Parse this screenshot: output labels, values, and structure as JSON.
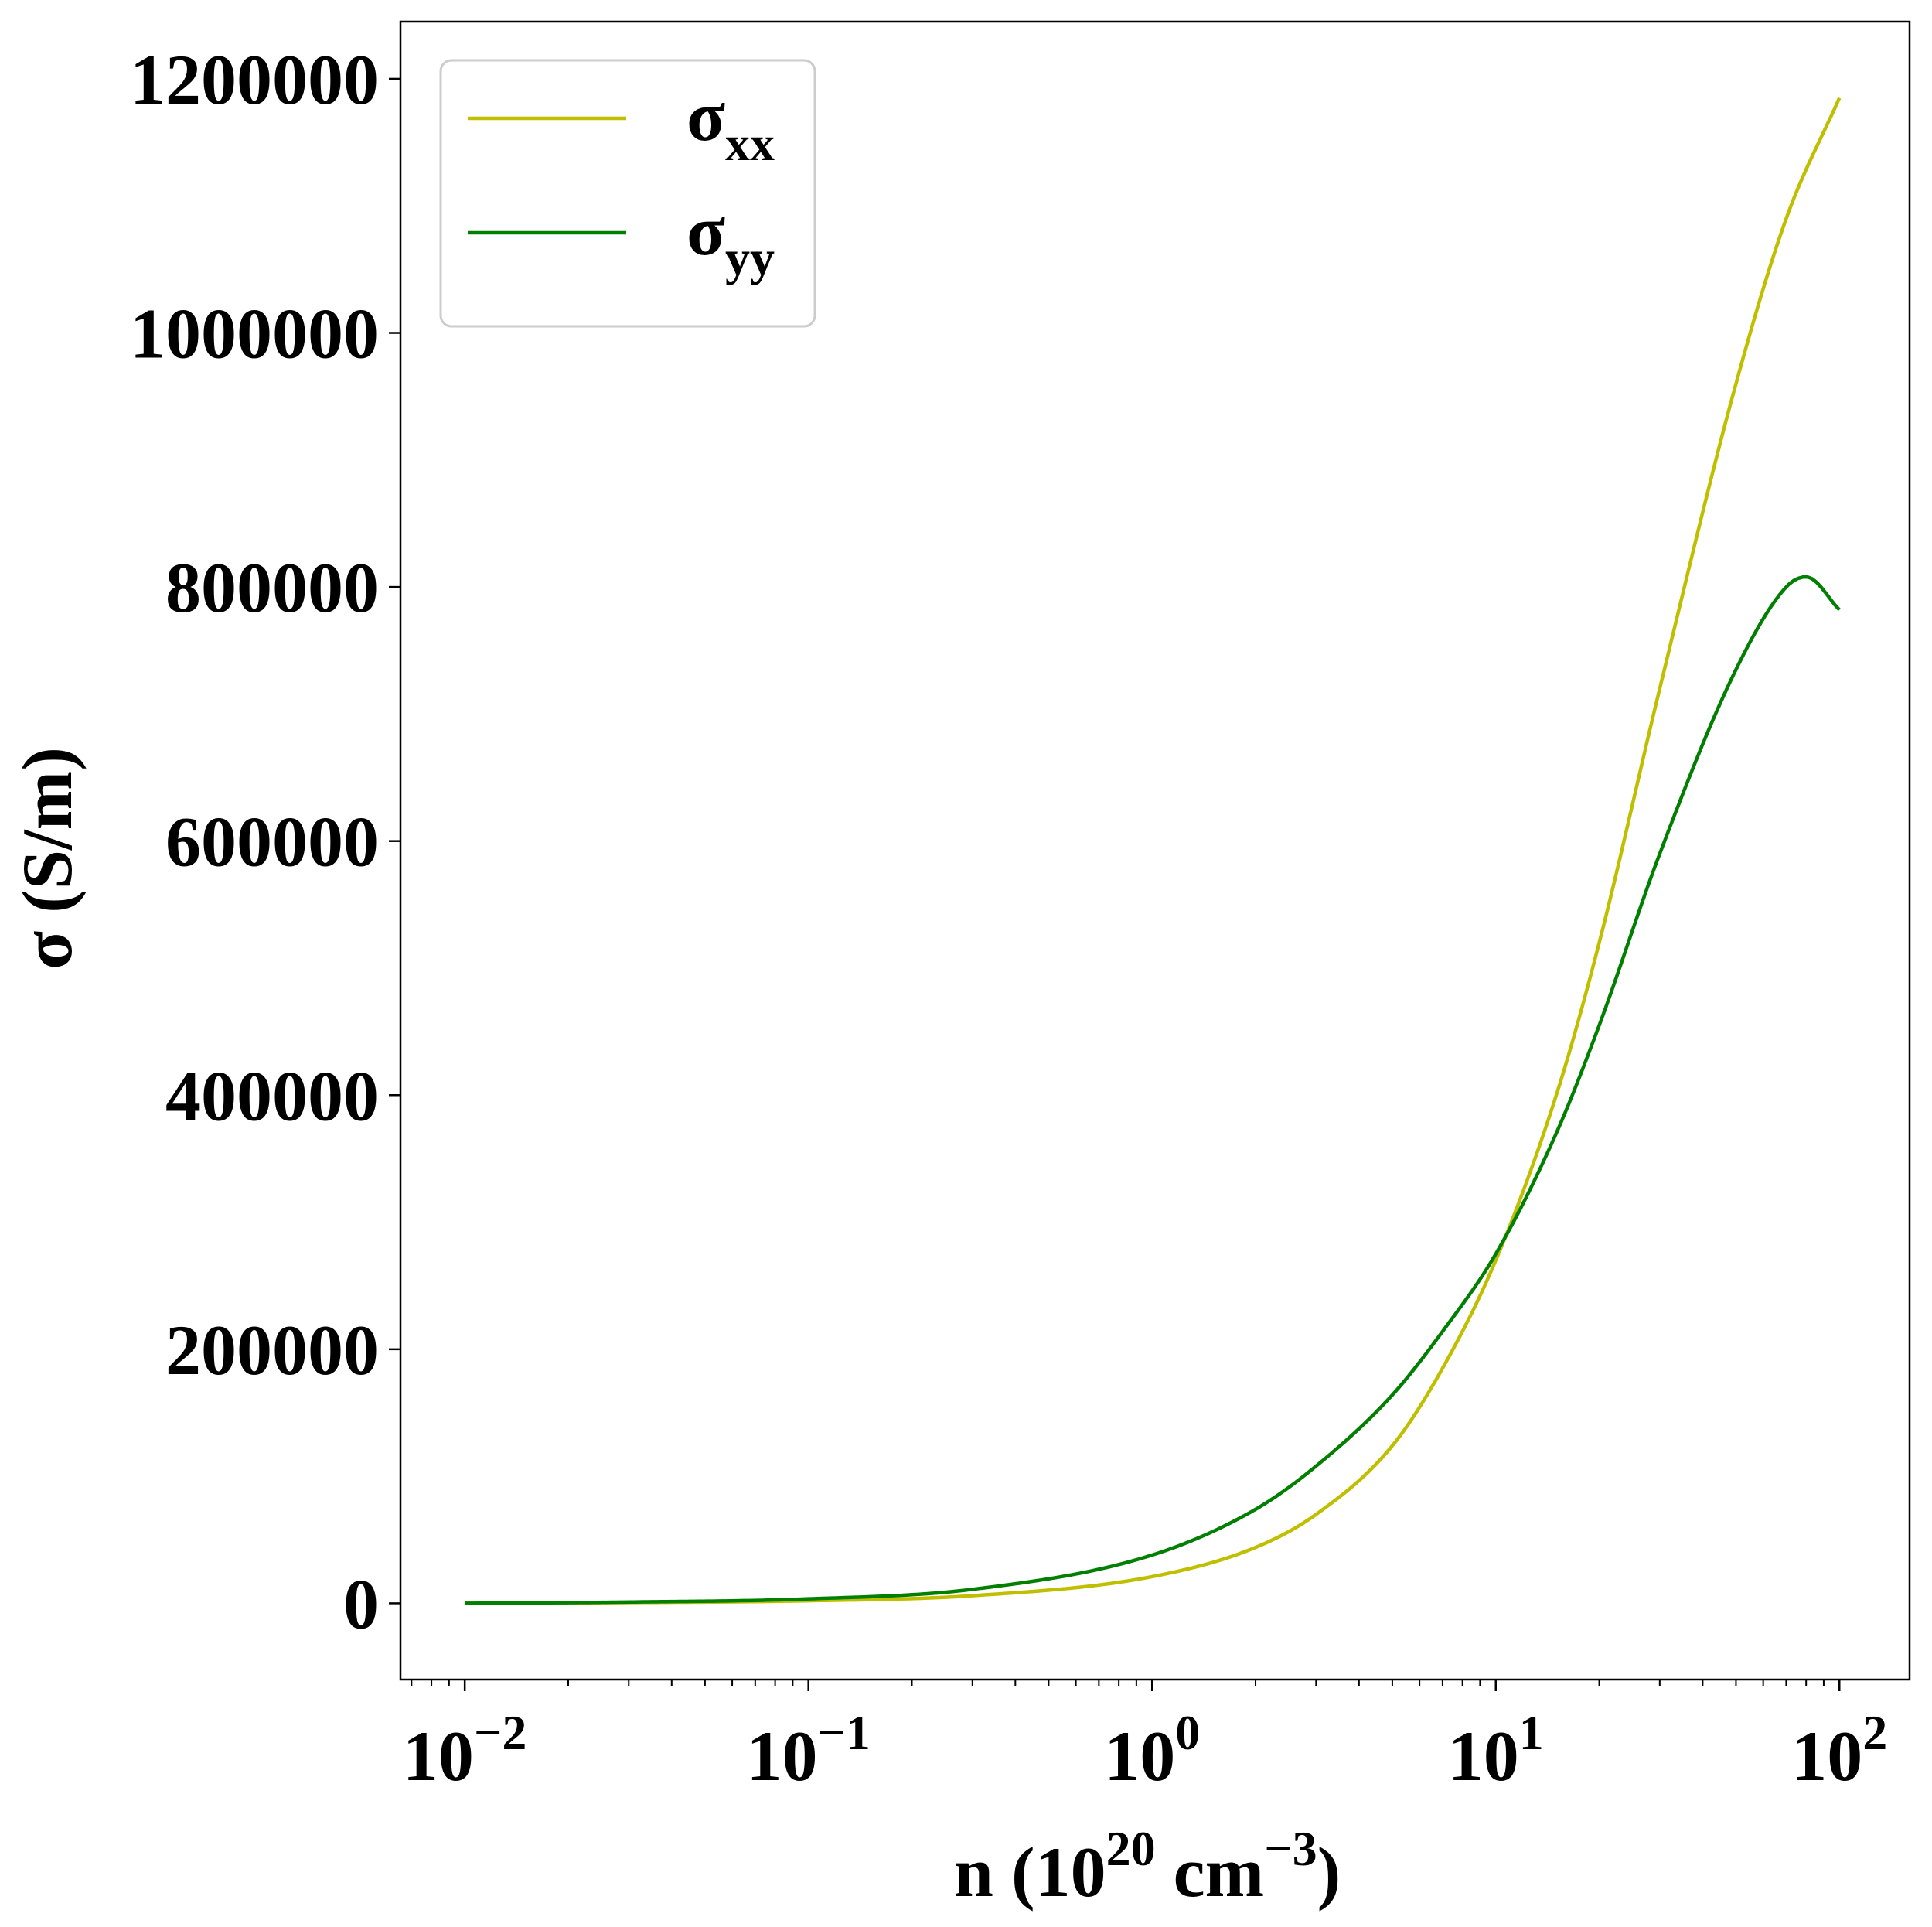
{
  "chart_data": {
    "type": "line",
    "xlabel": {
      "base": "n (10",
      "sup1": "20",
      "mid": " cm",
      "sup2": "−3",
      "end": ")"
    },
    "ylabel": "σ (S/m)",
    "x_scale": "log",
    "xlim": [
      0.0065,
      160
    ],
    "ylim": [
      -60000,
      1245000
    ],
    "x_ticks": [
      {
        "value": 0.01,
        "base": "10",
        "exp": "−2"
      },
      {
        "value": 0.1,
        "base": "10",
        "exp": "−1"
      },
      {
        "value": 1,
        "base": "10",
        "exp": "0"
      },
      {
        "value": 10,
        "base": "10",
        "exp": "1"
      },
      {
        "value": 100,
        "base": "10",
        "exp": "2"
      }
    ],
    "y_ticks": [
      {
        "value": 0,
        "label": "0"
      },
      {
        "value": 200000,
        "label": "200000"
      },
      {
        "value": 400000,
        "label": "400000"
      },
      {
        "value": 600000,
        "label": "600000"
      },
      {
        "value": 800000,
        "label": "800000"
      },
      {
        "value": 1000000,
        "label": "1000000"
      },
      {
        "value": 1200000,
        "label": "1200000"
      }
    ],
    "grid": false,
    "legend_position": "top-left",
    "series": [
      {
        "name": "σ",
        "sub": "xx",
        "color": "#bfbf00",
        "x": [
          0.01,
          0.03,
          0.1,
          0.3,
          1,
          2,
          3,
          5,
          7,
          10,
          15,
          20,
          30,
          50,
          70,
          100
        ],
        "y": [
          0,
          600,
          2000,
          6000,
          21000,
          44000,
          70000,
          124000,
          185000,
          270000,
          400000,
          520000,
          720000,
          960000,
          1090000,
          1185000
        ]
      },
      {
        "name": "σ",
        "sub": "yy",
        "color": "#007f00",
        "x": [
          0.01,
          0.03,
          0.1,
          0.3,
          1,
          2,
          3,
          5,
          7,
          10,
          15,
          20,
          30,
          50,
          70,
          80,
          100
        ],
        "y": [
          0,
          1000,
          3500,
          11000,
          38000,
          74000,
          108000,
          164000,
          214000,
          275000,
          370000,
          455000,
          590000,
          735000,
          800000,
          808000,
          782000
        ]
      }
    ]
  }
}
